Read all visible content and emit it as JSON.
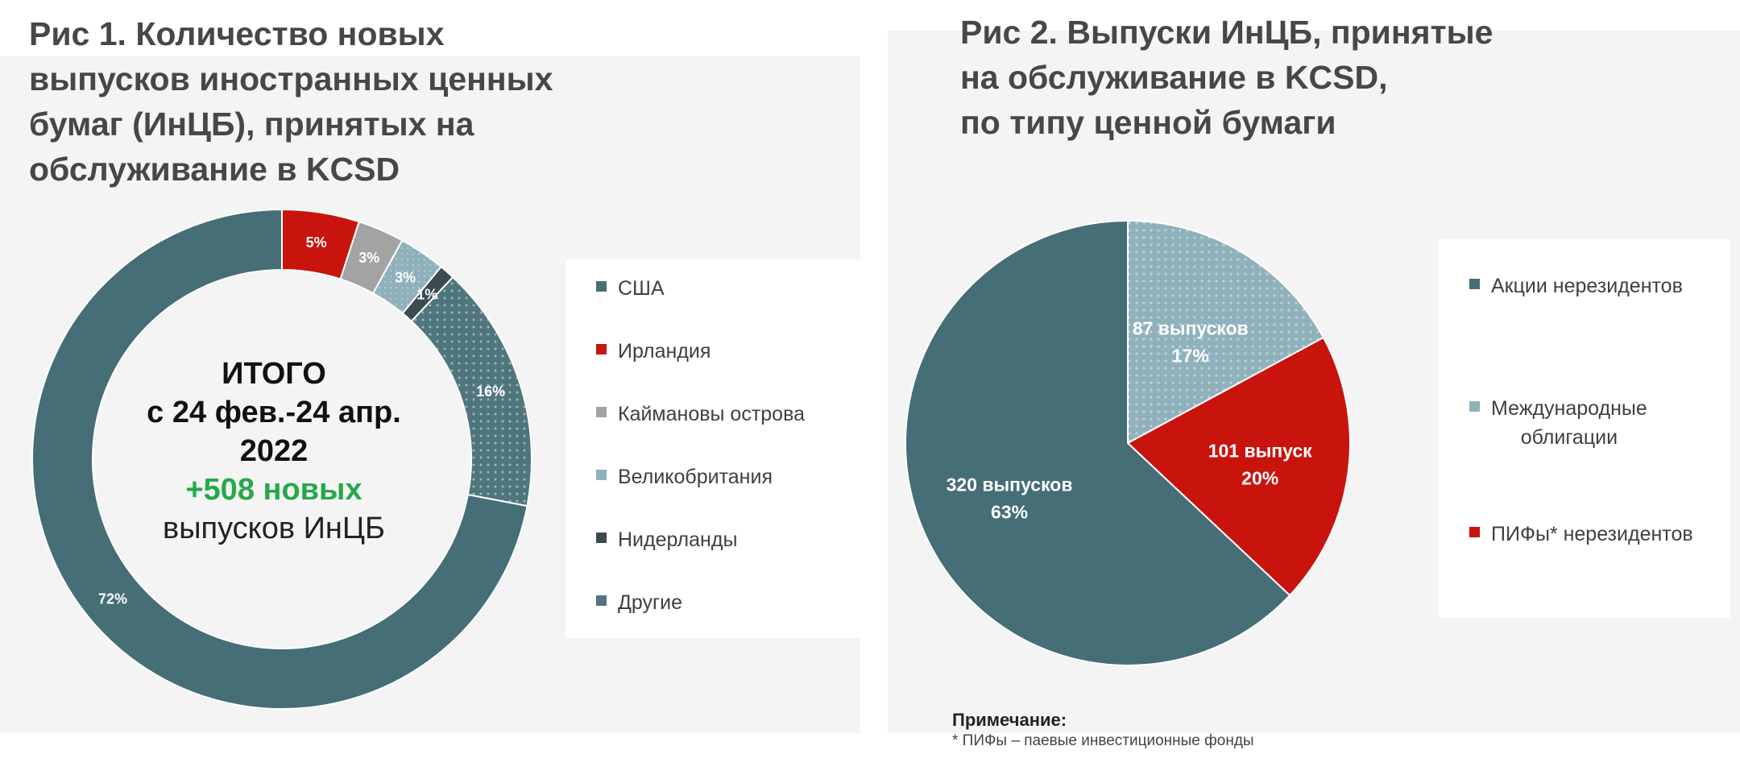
{
  "figure1": {
    "title": "Рис 1. Количество новых\nвыпусков иностранных ценных\nбумаг (ИнЦБ), принятых на\nобслуживание в KCSD",
    "center": {
      "line1": "ИТОГО",
      "line2": "с 24 фев.-24 апр.",
      "line3": "2022",
      "line4": "+508 новых",
      "line5": "выпусков ИнЦБ"
    }
  },
  "figure2": {
    "title": "Рис 2. Выпуски ИнЦБ, принятые\nна обслуживание в KCSD,\nпо типу ценной бумаги"
  },
  "note": {
    "title": "Примечание:",
    "text": "* ПИФы – паевые инвестиционные фонды"
  },
  "chart_data": [
    {
      "type": "pie",
      "variant": "donut",
      "categories": [
        "США",
        "Ирландия",
        "Каймановы острова",
        "Великобритания",
        "Нидерланды",
        "Другие"
      ],
      "values": [
        72,
        5,
        3,
        3,
        1,
        16
      ],
      "data_labels": [
        "72%",
        "5%",
        "3%",
        "3%",
        "1%",
        "16%"
      ],
      "unit": "%",
      "colors": [
        "#456e76",
        "#c9140e",
        "#a3a3a3",
        "#8fb1bb",
        "#3b4b4f",
        "#4f767d"
      ],
      "legend": "right"
    },
    {
      "type": "pie",
      "categories": [
        "Акции нерезидентов",
        "Международные\nоблигации",
        "ПИФы* нерезидентов"
      ],
      "values": [
        320,
        87,
        101
      ],
      "percents": [
        63,
        17,
        20
      ],
      "data_labels": [
        [
          "320 выпусков",
          "63%"
        ],
        [
          "87 выпусков",
          "17%"
        ],
        [
          "101 выпуск",
          "20%"
        ]
      ],
      "slice_order": [
        1,
        2,
        0
      ],
      "colors": [
        "#456e76",
        "#8fb1bb",
        "#c9140e"
      ],
      "legend": "right"
    }
  ]
}
